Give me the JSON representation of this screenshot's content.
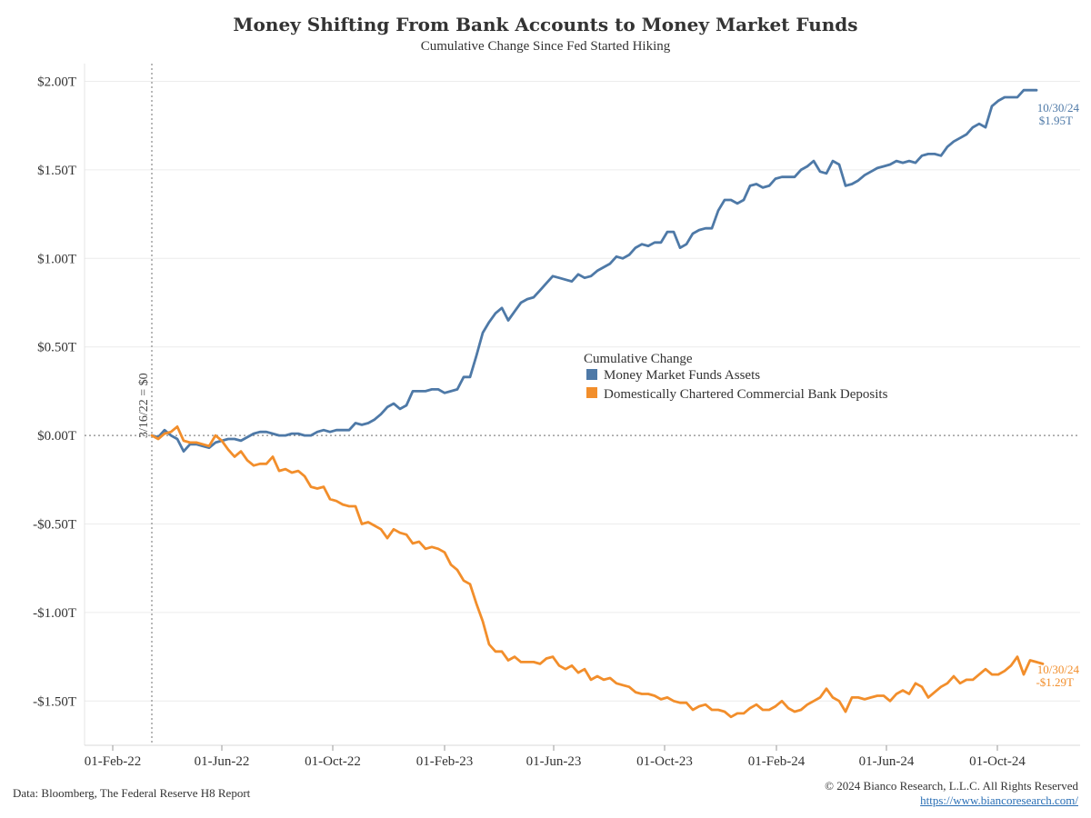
{
  "header": {
    "title": "Money Shifting From Bank Accounts to Money Market Funds",
    "subtitle": "Cumulative Change Since Fed Started Hiking"
  },
  "footer": {
    "source": "Data: Bloomberg, The Federal Reserve H8 Report",
    "copyright": "© 2024 Bianco Research, L.L.C. All Rights Reserved",
    "url": "https://www.biancoresearch.com/"
  },
  "colors": {
    "mmf": "#4e79a7",
    "deposits": "#f28e2b"
  },
  "chart_data": {
    "type": "line",
    "x_start": "2022-03-16",
    "x_step_days": 7,
    "xlim": [
      "2022-01-01",
      "2024-12-31"
    ],
    "ylim": [
      -1.75,
      2.1
    ],
    "x_tick_dates": [
      "2022-02-01",
      "2022-06-01",
      "2022-10-01",
      "2023-02-01",
      "2023-06-01",
      "2023-10-01",
      "2024-02-01",
      "2024-06-01",
      "2024-10-01"
    ],
    "x_tick_labels": [
      "01-Feb-22",
      "01-Jun-22",
      "01-Oct-22",
      "01-Feb-23",
      "01-Jun-23",
      "01-Oct-23",
      "01-Feb-24",
      "01-Jun-24",
      "01-Oct-24"
    ],
    "y_ticks": [
      2.0,
      1.5,
      1.0,
      0.5,
      0.0,
      -0.5,
      -1.0,
      -1.5
    ],
    "y_tick_labels": [
      "$2.00T",
      "$1.50T",
      "$1.00T",
      "$0.50T",
      "$0.00T",
      "-$0.50T",
      "-$1.00T",
      "-$1.50T"
    ],
    "grid": "horizontal",
    "legend": {
      "title": "Cumulative Change",
      "placement": "center-right"
    },
    "annotations": {
      "reference_line": "3/16/22 = $0",
      "mmf_end_date": "10/30/24",
      "mmf_end_value": "$1.95T",
      "dep_end_date": "10/30/24",
      "dep_end_value": "-$1.29T"
    },
    "series": [
      {
        "name": "Money Market Funds Assets",
        "values": [
          0.0,
          -0.01,
          0.03,
          0.0,
          -0.02,
          -0.09,
          -0.05,
          -0.05,
          -0.06,
          -0.07,
          -0.04,
          -0.03,
          -0.02,
          -0.02,
          -0.03,
          -0.01,
          0.01,
          0.02,
          0.02,
          0.01,
          0.0,
          0.0,
          0.01,
          0.01,
          0.0,
          0.0,
          0.02,
          0.03,
          0.02,
          0.03,
          0.03,
          0.03,
          0.07,
          0.06,
          0.07,
          0.09,
          0.12,
          0.16,
          0.18,
          0.15,
          0.17,
          0.25,
          0.25,
          0.25,
          0.26,
          0.26,
          0.24,
          0.25,
          0.26,
          0.33,
          0.33,
          0.45,
          0.58,
          0.64,
          0.69,
          0.72,
          0.65,
          0.7,
          0.75,
          0.77,
          0.78,
          0.82,
          0.86,
          0.9,
          0.89,
          0.88,
          0.87,
          0.91,
          0.89,
          0.9,
          0.93,
          0.95,
          0.97,
          1.01,
          1.0,
          1.02,
          1.06,
          1.08,
          1.07,
          1.09,
          1.09,
          1.15,
          1.15,
          1.06,
          1.08,
          1.14,
          1.16,
          1.17,
          1.17,
          1.27,
          1.33,
          1.33,
          1.31,
          1.33,
          1.41,
          1.42,
          1.4,
          1.41,
          1.45,
          1.46,
          1.46,
          1.46,
          1.5,
          1.52,
          1.55,
          1.49,
          1.48,
          1.55,
          1.53,
          1.41,
          1.42,
          1.44,
          1.47,
          1.49,
          1.51,
          1.52,
          1.53,
          1.55,
          1.54,
          1.55,
          1.54,
          1.58,
          1.59,
          1.59,
          1.58,
          1.63,
          1.66,
          1.68,
          1.7,
          1.74,
          1.76,
          1.74,
          1.86,
          1.89,
          1.91,
          1.91,
          1.91,
          1.95,
          1.95,
          1.95
        ]
      },
      {
        "name": "Domestically Chartered Commercial Bank Deposits",
        "values": [
          0.0,
          -0.02,
          0.01,
          0.02,
          0.05,
          -0.03,
          -0.04,
          -0.04,
          -0.05,
          -0.06,
          0.0,
          -0.03,
          -0.08,
          -0.12,
          -0.09,
          -0.14,
          -0.17,
          -0.16,
          -0.16,
          -0.12,
          -0.2,
          -0.19,
          -0.21,
          -0.2,
          -0.23,
          -0.29,
          -0.3,
          -0.29,
          -0.36,
          -0.37,
          -0.39,
          -0.4,
          -0.4,
          -0.5,
          -0.49,
          -0.51,
          -0.53,
          -0.58,
          -0.53,
          -0.55,
          -0.56,
          -0.61,
          -0.6,
          -0.64,
          -0.63,
          -0.64,
          -0.66,
          -0.73,
          -0.76,
          -0.82,
          -0.84,
          -0.95,
          -1.05,
          -1.18,
          -1.22,
          -1.22,
          -1.27,
          -1.25,
          -1.28,
          -1.28,
          -1.28,
          -1.29,
          -1.26,
          -1.25,
          -1.3,
          -1.32,
          -1.3,
          -1.34,
          -1.32,
          -1.38,
          -1.36,
          -1.38,
          -1.37,
          -1.4,
          -1.41,
          -1.42,
          -1.45,
          -1.46,
          -1.46,
          -1.47,
          -1.49,
          -1.48,
          -1.5,
          -1.51,
          -1.51,
          -1.55,
          -1.53,
          -1.52,
          -1.55,
          -1.55,
          -1.56,
          -1.59,
          -1.57,
          -1.57,
          -1.54,
          -1.52,
          -1.55,
          -1.55,
          -1.53,
          -1.5,
          -1.54,
          -1.56,
          -1.55,
          -1.52,
          -1.5,
          -1.48,
          -1.43,
          -1.48,
          -1.5,
          -1.56,
          -1.48,
          -1.48,
          -1.49,
          -1.48,
          -1.47,
          -1.47,
          -1.5,
          -1.46,
          -1.44,
          -1.46,
          -1.4,
          -1.42,
          -1.48,
          -1.45,
          -1.42,
          -1.4,
          -1.36,
          -1.4,
          -1.38,
          -1.38,
          -1.35,
          -1.32,
          -1.35,
          -1.35,
          -1.33,
          -1.3,
          -1.25,
          -1.35,
          -1.27,
          -1.28,
          -1.29
        ]
      }
    ]
  }
}
